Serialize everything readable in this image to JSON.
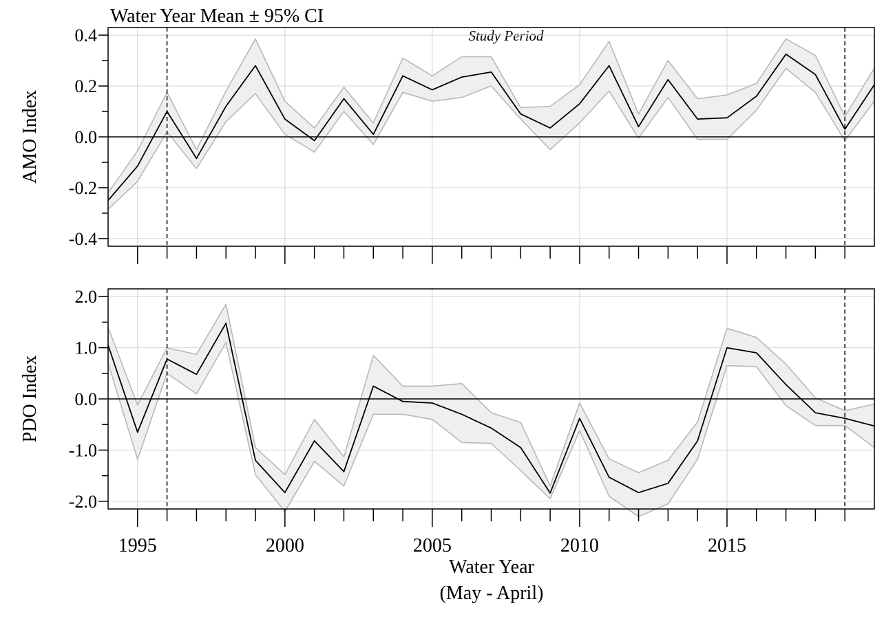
{
  "chart_data": [
    {
      "type": "line",
      "title": "Water Year Mean ± 95% CI",
      "annotation": "Study Period",
      "ylabel": "AMO Index",
      "ylim": [
        -0.43,
        0.43
      ],
      "yticks": [
        -0.4,
        -0.2,
        0.0,
        0.2,
        0.4
      ],
      "ytick_labels": [
        "-0.4",
        "-0.2",
        "0.0",
        "0.2",
        "0.4"
      ],
      "y_minor_step": 0.1,
      "grid": true,
      "zero_line": 0,
      "x": [
        1994,
        1995,
        1996,
        1997,
        1998,
        1999,
        2000,
        2001,
        2002,
        2003,
        2004,
        2005,
        2006,
        2007,
        2008,
        2009,
        2010,
        2011,
        2012,
        2013,
        2014,
        2015,
        2016,
        2017,
        2018,
        2019,
        2020
      ],
      "mean": [
        -0.25,
        -0.115,
        0.1,
        -0.085,
        0.12,
        0.28,
        0.07,
        -0.015,
        0.15,
        0.01,
        0.24,
        0.185,
        0.235,
        0.255,
        0.09,
        0.035,
        0.13,
        0.28,
        0.04,
        0.225,
        0.07,
        0.075,
        0.16,
        0.325,
        0.245,
        0.03,
        0.205
      ],
      "ci_lower": [
        -0.285,
        -0.175,
        0.02,
        -0.125,
        0.06,
        0.17,
        0.01,
        -0.06,
        0.1,
        -0.03,
        0.175,
        0.14,
        0.155,
        0.2,
        0.07,
        -0.05,
        0.055,
        0.18,
        -0.005,
        0.155,
        -0.01,
        -0.01,
        0.105,
        0.27,
        0.175,
        -0.015,
        0.14
      ],
      "ci_upper": [
        -0.22,
        -0.055,
        0.175,
        -0.05,
        0.18,
        0.385,
        0.14,
        0.035,
        0.195,
        0.055,
        0.31,
        0.24,
        0.315,
        0.315,
        0.115,
        0.12,
        0.205,
        0.375,
        0.09,
        0.3,
        0.15,
        0.165,
        0.21,
        0.385,
        0.32,
        0.08,
        0.27
      ]
    },
    {
      "type": "line",
      "xlabel": "Water Year",
      "xlabel_sub": "(May - April)",
      "ylabel": "PDO Index",
      "ylim": [
        -2.15,
        2.15
      ],
      "yticks": [
        -2.0,
        -1.0,
        0.0,
        1.0,
        2.0
      ],
      "ytick_labels": [
        "-2.0",
        "-1.0",
        "0.0",
        "1.0",
        "2.0"
      ],
      "y_minor_step": 0.5,
      "grid": true,
      "zero_line": 0,
      "x": [
        1994,
        1995,
        1996,
        1997,
        1998,
        1999,
        2000,
        2001,
        2002,
        2003,
        2004,
        2005,
        2006,
        2007,
        2008,
        2009,
        2010,
        2011,
        2012,
        2013,
        2014,
        2015,
        2016,
        2017,
        2018,
        2019,
        2020
      ],
      "mean": [
        1.05,
        -0.65,
        0.78,
        0.48,
        1.48,
        -1.2,
        -1.83,
        -0.82,
        -1.42,
        0.25,
        -0.05,
        -0.08,
        -0.3,
        -0.57,
        -0.95,
        -1.84,
        -0.38,
        -1.53,
        -1.83,
        -1.65,
        -0.82,
        1.0,
        0.9,
        0.28,
        -0.27,
        -0.38,
        -0.53
      ],
      "ci_lower": [
        0.7,
        -1.18,
        0.5,
        0.1,
        1.1,
        -1.48,
        -2.2,
        -1.22,
        -1.7,
        -0.3,
        -0.3,
        -0.4,
        -0.85,
        -0.87,
        -1.4,
        -1.95,
        -0.62,
        -1.9,
        -2.3,
        -2.05,
        -1.18,
        0.65,
        0.63,
        -0.13,
        -0.52,
        -0.52,
        -0.95
      ],
      "ci_upper": [
        1.4,
        -0.12,
        1.0,
        0.87,
        1.85,
        -0.95,
        -1.48,
        -0.4,
        -1.13,
        0.85,
        0.25,
        0.25,
        0.3,
        -0.27,
        -0.46,
        -1.7,
        -0.08,
        -1.17,
        -1.44,
        -1.2,
        -0.45,
        1.38,
        1.2,
        0.68,
        0.02,
        -0.23,
        -0.1
      ]
    }
  ],
  "x_axis": {
    "xlim": [
      1994,
      2020
    ],
    "major_ticks": [
      1995,
      2000,
      2005,
      2010,
      2015
    ],
    "major_labels": [
      "1995",
      "2000",
      "2005",
      "2010",
      "2015"
    ],
    "minor_step": 1,
    "study_period": [
      1996,
      2019
    ]
  },
  "colors": {
    "ci_fill": "#efefef",
    "ci_stroke": "#b8b8b8",
    "mean_line": "#000000",
    "grid": "#d4d4d4",
    "dashed": "#000000"
  }
}
